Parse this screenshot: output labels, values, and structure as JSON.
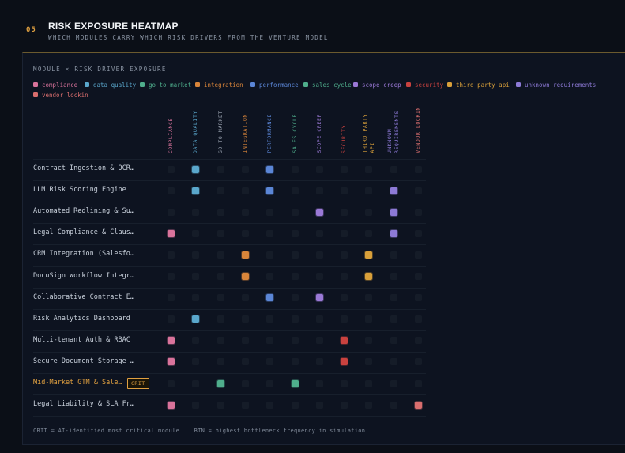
{
  "header": {
    "section_number": "05",
    "title": "RISK EXPOSURE HEATMAP",
    "subtitle": "WHICH MODULES CARRY WHICH RISK DRIVERS FROM THE VENTURE MODEL"
  },
  "panel": {
    "title": "MODULE × RISK DRIVER EXPOSURE"
  },
  "legend": [
    {
      "label": "compliance",
      "color": "#d9739b"
    },
    {
      "label": "data quality",
      "color": "#5aa7cc"
    },
    {
      "label": "go to market",
      "color": "#4fae8c"
    },
    {
      "label": "integration",
      "color": "#d9853a"
    },
    {
      "label": "performance",
      "color": "#5b86d6"
    },
    {
      "label": "sales cycle",
      "color": "#4fae8c"
    },
    {
      "label": "scope creep",
      "color": "#9a79d6"
    },
    {
      "label": "security",
      "color": "#c9423f"
    },
    {
      "label": "third party api",
      "color": "#d9a03a"
    },
    {
      "label": "unknown requirements",
      "color": "#8d7ad6"
    },
    {
      "label": "vendor lockin",
      "color": "#d96e6e"
    }
  ],
  "columns": [
    {
      "label": "COMPLIANCE",
      "color": "#d9739b"
    },
    {
      "label": "DATA QUALITY",
      "color": "#5aa7cc"
    },
    {
      "label": "GO TO MARKET",
      "color": "#9aa3b0"
    },
    {
      "label": "INTEGRATION",
      "color": "#d9853a"
    },
    {
      "label": "PERFORMANCE",
      "color": "#5b86d6"
    },
    {
      "label": "SALES CYCLE",
      "color": "#4fae8c"
    },
    {
      "label": "SCOPE CREEP",
      "color": "#9a79d6"
    },
    {
      "label": "SECURITY",
      "color": "#c9423f"
    },
    {
      "label": "THIRD PARTY\nAPI",
      "color": "#d9a03a"
    },
    {
      "label": "UNKNOWN\nREQUIREMENTS",
      "color": "#8d7ad6"
    },
    {
      "label": "VENDOR LOCKIN",
      "color": "#d96e6e"
    }
  ],
  "rows": [
    {
      "label": "Contract Ingestion & OCR…",
      "highlight": false,
      "badge": "",
      "exposure": [
        0,
        1,
        0,
        0,
        1,
        0,
        0,
        0,
        0,
        0,
        0
      ]
    },
    {
      "label": "LLM Risk Scoring Engine",
      "highlight": false,
      "badge": "",
      "exposure": [
        0,
        1,
        0,
        0,
        1,
        0,
        0,
        0,
        0,
        1,
        0
      ]
    },
    {
      "label": "Automated Redlining & Su…",
      "highlight": false,
      "badge": "",
      "exposure": [
        0,
        0,
        0,
        0,
        0,
        0,
        1,
        0,
        0,
        1,
        0
      ]
    },
    {
      "label": "Legal Compliance & Claus…",
      "highlight": false,
      "badge": "",
      "exposure": [
        1,
        0,
        0,
        0,
        0,
        0,
        0,
        0,
        0,
        1,
        0
      ]
    },
    {
      "label": "CRM Integration (Salesfo…",
      "highlight": false,
      "badge": "",
      "exposure": [
        0,
        0,
        0,
        1,
        0,
        0,
        0,
        0,
        1,
        0,
        0
      ]
    },
    {
      "label": "DocuSign Workflow Integr…",
      "highlight": false,
      "badge": "",
      "exposure": [
        0,
        0,
        0,
        1,
        0,
        0,
        0,
        0,
        1,
        0,
        0
      ]
    },
    {
      "label": "Collaborative Contract E…",
      "highlight": false,
      "badge": "",
      "exposure": [
        0,
        0,
        0,
        0,
        1,
        0,
        1,
        0,
        0,
        0,
        0
      ]
    },
    {
      "label": "Risk Analytics Dashboard",
      "highlight": false,
      "badge": "",
      "exposure": [
        0,
        1,
        0,
        0,
        0,
        0,
        0,
        0,
        0,
        0,
        0
      ]
    },
    {
      "label": "Multi-tenant Auth & RBAC",
      "highlight": false,
      "badge": "",
      "exposure": [
        1,
        0,
        0,
        0,
        0,
        0,
        0,
        1,
        0,
        0,
        0
      ]
    },
    {
      "label": "Secure Document Storage …",
      "highlight": false,
      "badge": "",
      "exposure": [
        1,
        0,
        0,
        0,
        0,
        0,
        0,
        1,
        0,
        0,
        0
      ]
    },
    {
      "label": "Mid-Market GTM & Sale…",
      "highlight": true,
      "badge": "CRIT",
      "exposure": [
        0,
        0,
        1,
        0,
        0,
        1,
        0,
        0,
        0,
        0,
        0
      ]
    },
    {
      "label": "Legal Liability & SLA Fr…",
      "highlight": false,
      "badge": "",
      "exposure": [
        1,
        0,
        0,
        0,
        0,
        0,
        0,
        0,
        0,
        0,
        1
      ]
    }
  ],
  "footer": {
    "crit_note": "CRIT = AI-identified most critical module",
    "btn_note": "BTN = highest bottleneck frequency in simulation"
  }
}
